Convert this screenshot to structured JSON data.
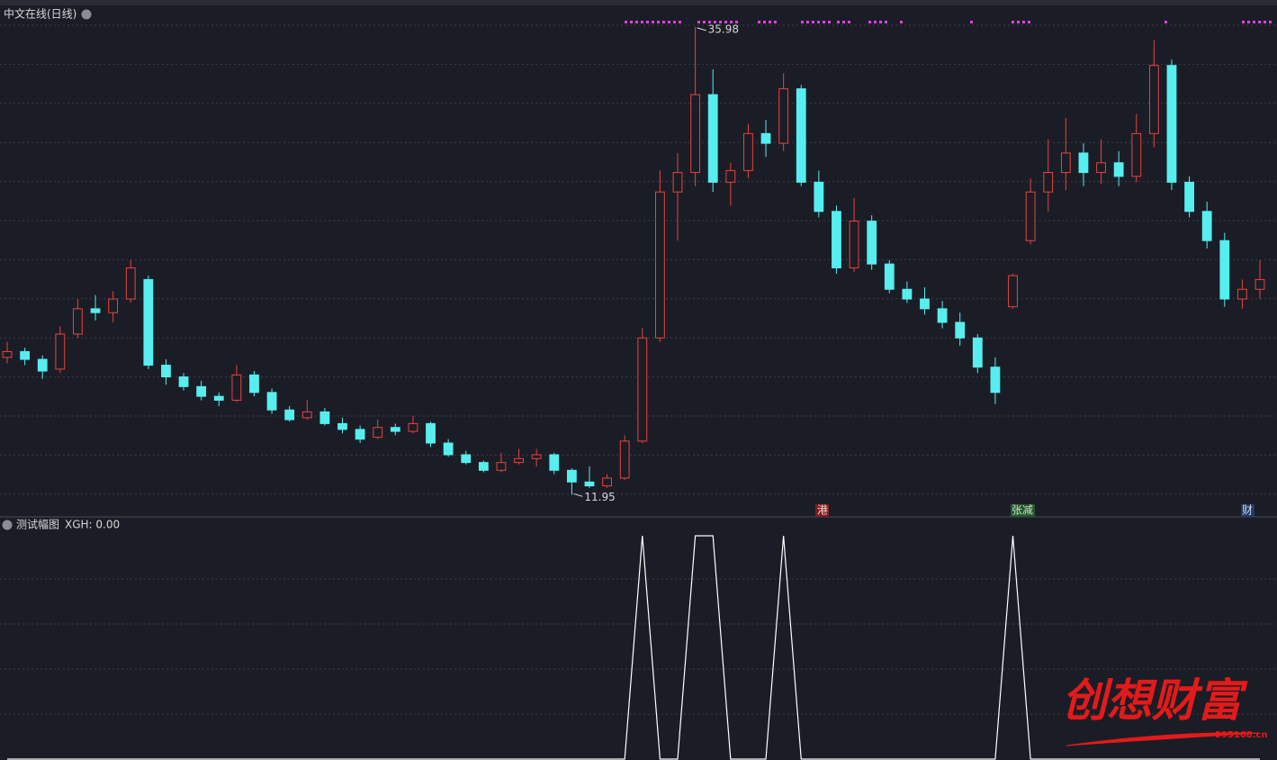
{
  "chart_data": [
    {
      "type": "candlestick",
      "title": "中文在线(日线)",
      "open": [
        19.0,
        19.3,
        18.9,
        18.4,
        20.2,
        21.5,
        21.3,
        22.0,
        23.0,
        18.6,
        18.0,
        17.5,
        17.0,
        16.8,
        18.1,
        17.2,
        16.3,
        15.9,
        16.2,
        15.6,
        15.3,
        14.9,
        15.4,
        15.2,
        15.6,
        14.6,
        14.0,
        13.6,
        13.2,
        13.6,
        13.8,
        14.0,
        13.2,
        12.6,
        12.4,
        12.8,
        14.7,
        20.0,
        27.5,
        28.5,
        32.5,
        28.0,
        28.6,
        30.5,
        30.0,
        32.8,
        28.0,
        26.5,
        23.6,
        26.0,
        23.8,
        22.5,
        22.0,
        21.5,
        20.8,
        20.0,
        18.5,
        21.6,
        25.0,
        27.5,
        28.5,
        29.5,
        28.5,
        29.0,
        28.3,
        30.5,
        34.0,
        28.0,
        26.5,
        25.0,
        22.0,
        22.5
      ],
      "high": [
        19.8,
        19.5,
        19.1,
        20.6,
        22.0,
        22.2,
        22.4,
        24.0,
        23.2,
        18.9,
        18.2,
        17.8,
        17.2,
        18.6,
        18.3,
        17.4,
        16.5,
        16.8,
        16.4,
        15.9,
        15.5,
        15.8,
        15.6,
        16.0,
        15.7,
        14.8,
        14.2,
        13.7,
        14.1,
        14.3,
        14.3,
        14.1,
        13.3,
        13.4,
        13.0,
        15.0,
        20.5,
        28.6,
        29.5,
        35.98,
        33.8,
        29.0,
        31.0,
        31.2,
        33.6,
        33.0,
        28.6,
        26.8,
        27.2,
        26.3,
        24.0,
        22.9,
        22.6,
        21.9,
        21.3,
        20.2,
        19.0,
        23.3,
        28.2,
        30.2,
        31.3,
        30.0,
        30.2,
        29.6,
        31.5,
        35.3,
        34.3,
        28.3,
        27.0,
        25.4,
        23.0,
        24.0
      ],
      "low": [
        18.7,
        18.6,
        17.9,
        18.2,
        20.0,
        20.9,
        20.8,
        21.8,
        18.4,
        17.6,
        17.3,
        16.8,
        16.5,
        16.7,
        17.0,
        16.1,
        15.7,
        15.8,
        15.5,
        15.1,
        14.6,
        14.8,
        15.0,
        15.1,
        14.4,
        13.9,
        13.5,
        13.1,
        13.1,
        13.5,
        13.4,
        13.0,
        11.95,
        12.3,
        12.3,
        12.7,
        14.6,
        19.8,
        25.0,
        27.8,
        27.5,
        26.8,
        28.2,
        29.3,
        29.6,
        27.8,
        26.2,
        23.3,
        23.4,
        23.5,
        22.3,
        21.8,
        21.2,
        20.5,
        19.6,
        18.2,
        16.6,
        21.5,
        24.8,
        26.5,
        27.6,
        27.8,
        27.9,
        27.8,
        28.0,
        29.8,
        27.6,
        26.2,
        24.6,
        21.6,
        21.5,
        22.0
      ],
      "close": [
        19.3,
        18.9,
        18.3,
        20.2,
        21.5,
        21.3,
        22.0,
        23.6,
        18.6,
        18.0,
        17.5,
        17.0,
        16.8,
        18.1,
        17.2,
        16.3,
        15.8,
        16.2,
        15.6,
        15.3,
        14.8,
        15.4,
        15.2,
        15.6,
        14.6,
        14.0,
        13.6,
        13.2,
        13.6,
        13.8,
        14.0,
        13.2,
        12.6,
        12.4,
        12.8,
        14.7,
        20.0,
        27.5,
        28.5,
        32.5,
        28.0,
        28.6,
        30.5,
        30.0,
        32.8,
        28.0,
        26.5,
        23.6,
        26.0,
        23.8,
        22.5,
        22.0,
        21.5,
        20.8,
        20.0,
        18.5,
        17.2,
        23.2,
        27.5,
        28.5,
        29.5,
        28.5,
        29.0,
        28.3,
        30.5,
        34.0,
        28.0,
        26.5,
        25.0,
        22.0,
        22.5,
        23.0
      ],
      "max_label": 35.98,
      "min_label": 11.95,
      "ylim": [
        10.9,
        36.9
      ],
      "up_color": "#e8433c",
      "down_color": "#57eef0"
    },
    {
      "type": "line",
      "title": "测试幅图",
      "readout": "XGH: 0.00",
      "values": [
        0,
        0,
        0,
        0,
        0,
        0,
        0,
        0,
        0,
        0,
        0,
        0,
        0,
        0,
        0,
        0,
        0,
        0,
        0,
        0,
        0,
        0,
        0,
        0,
        0,
        0,
        0,
        0,
        0,
        0,
        0,
        0,
        0,
        0,
        0,
        0,
        1,
        0,
        0,
        1,
        1,
        0,
        0,
        0,
        1,
        0,
        0,
        0,
        0,
        0,
        0,
        0,
        0,
        0,
        0,
        0,
        0,
        1,
        0,
        0,
        0,
        0,
        0,
        0,
        0,
        0,
        0,
        0,
        0,
        0,
        0,
        0
      ],
      "ylim": [
        0,
        1
      ],
      "color": "#ffffff"
    }
  ],
  "events": [
    "港",
    "张减",
    "财"
  ],
  "watermark": {
    "brand": "创想财富",
    "site": "995168.cn"
  }
}
